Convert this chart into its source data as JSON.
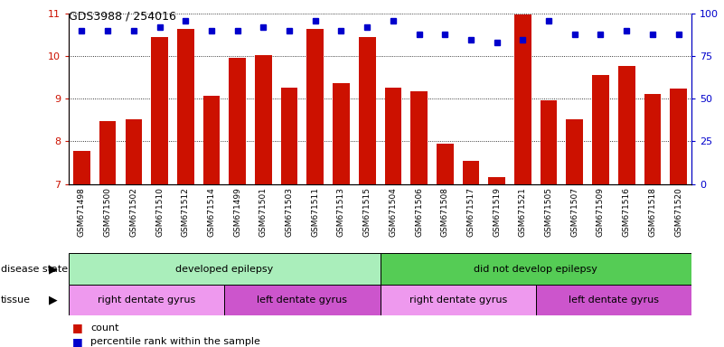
{
  "title": "GDS3988 / 254016",
  "samples": [
    "GSM671498",
    "GSM671500",
    "GSM671502",
    "GSM671510",
    "GSM671512",
    "GSM671514",
    "GSM671499",
    "GSM671501",
    "GSM671503",
    "GSM671511",
    "GSM671513",
    "GSM671515",
    "GSM671504",
    "GSM671506",
    "GSM671508",
    "GSM671517",
    "GSM671519",
    "GSM671521",
    "GSM671505",
    "GSM671507",
    "GSM671509",
    "GSM671516",
    "GSM671518",
    "GSM671520"
  ],
  "bar_values": [
    7.77,
    8.47,
    8.52,
    10.45,
    10.65,
    9.07,
    9.97,
    10.02,
    9.27,
    10.65,
    9.37,
    10.45,
    9.27,
    9.17,
    7.95,
    7.55,
    7.15,
    10.98,
    8.97,
    8.52,
    9.57,
    9.77,
    9.12,
    9.25
  ],
  "percentile_values": [
    90,
    90,
    90,
    92,
    96,
    90,
    90,
    92,
    90,
    96,
    90,
    92,
    96,
    88,
    88,
    85,
    83,
    85,
    96,
    88,
    88,
    90,
    88,
    88
  ],
  "bar_color": "#CC1100",
  "dot_color": "#0000CC",
  "ylim_left": [
    7,
    11
  ],
  "ylim_right": [
    0,
    100
  ],
  "yticks_left": [
    7,
    8,
    9,
    10,
    11
  ],
  "yticks_right": [
    0,
    25,
    50,
    75,
    100
  ],
  "disease_groups": [
    {
      "label": "developed epilepsy",
      "start": 0,
      "end": 11,
      "color": "#AAEEBB"
    },
    {
      "label": "did not develop epilepsy",
      "start": 12,
      "end": 23,
      "color": "#55CC55"
    }
  ],
  "tissue_groups": [
    {
      "label": "right dentate gyrus",
      "start": 0,
      "end": 5,
      "color": "#EE99EE"
    },
    {
      "label": "left dentate gyrus",
      "start": 6,
      "end": 11,
      "color": "#CC55CC"
    },
    {
      "label": "right dentate gyrus",
      "start": 12,
      "end": 17,
      "color": "#EE99EE"
    },
    {
      "label": "left dentate gyrus",
      "start": 18,
      "end": 23,
      "color": "#CC55CC"
    }
  ],
  "row_labels": [
    "disease state",
    "tissue"
  ],
  "legend_items": [
    {
      "label": "count",
      "color": "#CC1100"
    },
    {
      "label": "percentile rank within the sample",
      "color": "#0000CC"
    }
  ],
  "background_color": "#FFFFFF",
  "ticklabel_bg": "#DDDDDD"
}
